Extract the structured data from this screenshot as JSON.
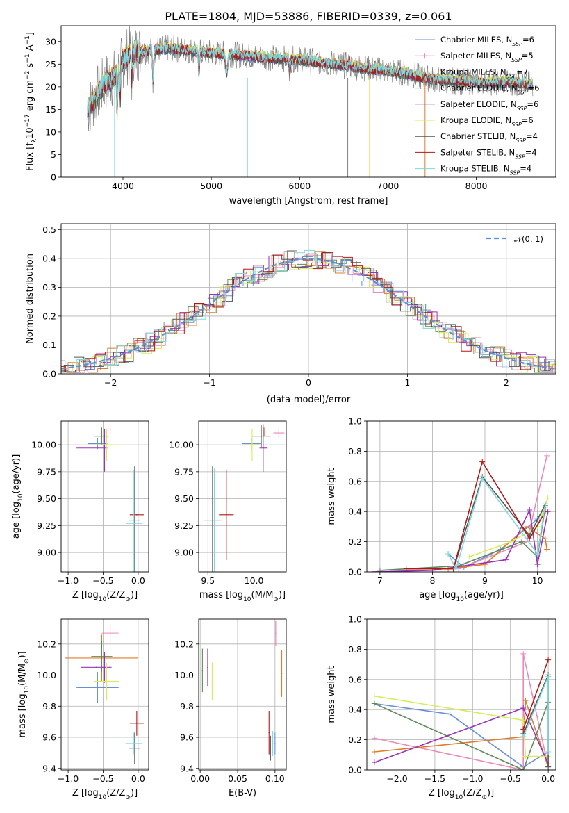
{
  "title": "PLATE=1804, MJD=53886, FIBERID=0339, z=0.061",
  "colors": {
    "chabrier_miles": "#6a8fd8",
    "salpeter_miles": "#e98ab8",
    "kroupa_miles": "#e07b2a",
    "chabrier_elodie": "#5f8a5a",
    "salpeter_elodie": "#9b33b8",
    "kroupa_elodie": "#d6ec5c",
    "chabrier_stelib": "#555555",
    "salpeter_stelib": "#b01818",
    "kroupa_stelib": "#7fd8dc",
    "data": "#808080",
    "normal": "#5b8ed8"
  },
  "chart_data": [
    {
      "id": "spectrum",
      "type": "line",
      "xlabel": "wavelength [Angstrom, rest frame]",
      "ylabel": "Flux [f",
      "ylabel_parts": {
        "a": "Flux [f",
        "b": "λ",
        "c": "10",
        "d": "−17",
        "e": " erg cm",
        "f": "−2",
        "g": " s",
        "h": "−1",
        "i": " A",
        "j": "−1",
        "k": "]"
      },
      "xlim": [
        3300,
        8900
      ],
      "ylim": [
        0,
        33.5
      ],
      "xticks": [
        4000,
        5000,
        6000,
        7000,
        8000
      ],
      "yticks": [
        0,
        5,
        10,
        15,
        20,
        25,
        30
      ],
      "series_continuum": [
        [
          3600,
          15
        ],
        [
          3700,
          18
        ],
        [
          3800,
          21
        ],
        [
          3900,
          22
        ],
        [
          4000,
          26
        ],
        [
          4100,
          27.5
        ],
        [
          4300,
          28
        ],
        [
          4500,
          28.5
        ],
        [
          4800,
          28
        ],
        [
          5000,
          27.5
        ],
        [
          5300,
          27
        ],
        [
          5600,
          26.5
        ],
        [
          6000,
          26
        ],
        [
          6400,
          25
        ],
        [
          6800,
          24
        ],
        [
          7200,
          23
        ],
        [
          7400,
          22
        ],
        [
          7600,
          21.5
        ],
        [
          8000,
          21
        ],
        [
          8400,
          21
        ],
        [
          8600,
          20.5
        ]
      ],
      "legend": [
        {
          "name": "Chabrier MILES",
          "n": "6"
        },
        {
          "name": "Salpeter MILES",
          "n": "5"
        },
        {
          "name": "Kroupa MILES",
          "n": "7"
        },
        {
          "name": "Chabrier ELODIE",
          "n": "6"
        },
        {
          "name": "Salpeter ELODIE",
          "n": "6"
        },
        {
          "name": "Kroupa ELODIE",
          "n": "6"
        },
        {
          "name": "Chabrier STELIB",
          "n": "4"
        },
        {
          "name": "Salpeter STELIB",
          "n": "4"
        },
        {
          "name": "Kroupa STELIB",
          "n": "4"
        }
      ],
      "legend_sub": "SSP",
      "legend_prefix": "N",
      "legend_loc": "upper right"
    },
    {
      "id": "residuals",
      "type": "line",
      "xlabel": "(data-model)/error",
      "ylabel": "Normed distribution",
      "xlim": [
        -2.5,
        2.5
      ],
      "ylim": [
        0,
        0.52
      ],
      "xticks": [
        -2,
        -1,
        0,
        1,
        2
      ],
      "xtick_labels": [
        "−2",
        "−1",
        "0",
        "1",
        "2"
      ],
      "yticks": [
        0.0,
        0.1,
        0.2,
        0.3,
        0.4,
        0.5
      ],
      "ytick_labels": [
        "0.0",
        "0.1",
        "0.2",
        "0.3",
        "0.4",
        "0.5"
      ],
      "legend": "𝒩(0, 1)",
      "legend_loc": "upper right",
      "grid": true
    },
    {
      "id": "age_vs_Z",
      "type": "scatter",
      "xlabel": "Z [log",
      "xlabel_parts": {
        "a": "Z [log",
        "b": "10",
        "c": "(Z/Z",
        "d": "⊙",
        "e": ")]"
      },
      "ylabel_parts": {
        "a": "age  [log",
        "b": "10",
        "c": "(age/yr)]"
      },
      "xlim": [
        -1.1,
        0.15
      ],
      "ylim": [
        8.82,
        10.22
      ],
      "xticks": [
        -1.0,
        -0.5,
        0.0
      ],
      "xtick_labels": [
        "−1.0",
        "−0.5",
        "0.0"
      ],
      "yticks": [
        9.0,
        9.25,
        9.5,
        9.75,
        10.0
      ],
      "ytick_labels": [
        "9.00",
        "9.25",
        "9.50",
        "9.75",
        "10.00"
      ],
      "points": [
        {
          "c": "chabrier_miles",
          "x": -0.58,
          "y": 10.01,
          "xerr": 0.14,
          "yerr": 0.05
        },
        {
          "c": "salpeter_miles",
          "x": -0.4,
          "y": 10.12,
          "xerr": 0.12,
          "yerr": 0.03
        },
        {
          "c": "kroupa_miles",
          "x": -0.52,
          "y": 10.12,
          "xerr": 0.52,
          "yerr": 0.04
        },
        {
          "c": "chabrier_elodie",
          "x": -0.52,
          "y": 10.08,
          "xerr": 0.1,
          "yerr": 0.08
        },
        {
          "c": "salpeter_elodie",
          "x": -0.66,
          "y": 9.97,
          "xerr": 0.22,
          "yerr": 0.0
        },
        {
          "c": "salpeter_elodie",
          "x": -0.48,
          "y": 9.95,
          "xerr": 0.0,
          "yerr": 0.2
        },
        {
          "c": "kroupa_elodie",
          "x": -0.45,
          "y": 10.0,
          "xerr": 0.18,
          "yerr": 0.15
        },
        {
          "c": "chabrier_stelib",
          "x": -0.05,
          "y": 9.3,
          "xerr": 0.08,
          "yerr": 0.5
        },
        {
          "c": "salpeter_stelib",
          "x": -0.02,
          "y": 9.35,
          "xerr": 0.1,
          "yerr": 0.0
        },
        {
          "c": "kroupa_stelib",
          "x": -0.06,
          "y": 9.27,
          "xerr": 0.12,
          "yerr": 0.5
        }
      ]
    },
    {
      "id": "age_vs_mass",
      "type": "scatter",
      "xlabel_parts": {
        "a": "mass [log",
        "b": "10",
        "c": "(M/M",
        "d": "⊙",
        "e": ")]"
      },
      "xlim": [
        9.4,
        10.35
      ],
      "ylim": [
        8.82,
        10.22
      ],
      "xticks": [
        9.5,
        10.0
      ],
      "xtick_labels": [
        "9.5",
        "10.0"
      ],
      "yticks": [
        9.0,
        9.25,
        9.5,
        9.75,
        10.0
      ],
      "ytick_labels": [
        "9.00",
        "9.25",
        "9.50",
        "9.75",
        "10.00"
      ],
      "points": [
        {
          "c": "chabrier_miles",
          "x": 9.97,
          "y": 10.01,
          "xerr": 0.1,
          "yerr": 0.05
        },
        {
          "c": "salpeter_miles",
          "x": 10.27,
          "y": 10.11,
          "xerr": 0.06,
          "yerr": 0.05
        },
        {
          "c": "kroupa_miles",
          "x": 10.11,
          "y": 10.12,
          "xerr": 0.15,
          "yerr": 0.04
        },
        {
          "c": "chabrier_elodie",
          "x": 10.08,
          "y": 10.08,
          "xerr": 0.1,
          "yerr": 0.1
        },
        {
          "c": "salpeter_elodie",
          "x": 10.1,
          "y": 9.97,
          "xerr": 0.04,
          "yerr": 0.22
        },
        {
          "c": "kroupa_elodie",
          "x": 9.98,
          "y": 10.0,
          "xerr": 0.08,
          "yerr": 0.15
        },
        {
          "c": "chabrier_stelib",
          "x": 9.55,
          "y": 9.3,
          "xerr": 0.1,
          "yerr": 0.5
        },
        {
          "c": "salpeter_stelib",
          "x": 9.7,
          "y": 9.35,
          "xerr": 0.08,
          "yerr": 0.42
        },
        {
          "c": "kroupa_stelib",
          "x": 9.57,
          "y": 9.3,
          "xerr": 0.06,
          "yerr": 0.48
        }
      ]
    },
    {
      "id": "weight_vs_age",
      "type": "line",
      "xlabel_parts": {
        "a": "age  [log",
        "b": "10",
        "c": "(age/yr)]"
      },
      "ylabel": "mass weight",
      "xlim": [
        6.75,
        10.35
      ],
      "ylim": [
        0,
        1.0
      ],
      "xticks": [
        7,
        8,
        9,
        10
      ],
      "xtick_labels": [
        "7",
        "8",
        "9",
        "10"
      ],
      "yticks": [
        0.0,
        0.2,
        0.4,
        0.6,
        0.8,
        1.0
      ],
      "ytick_labels": [
        "0.0",
        "0.2",
        "0.4",
        "0.6",
        "0.8",
        "1.0"
      ],
      "series": [
        {
          "c": "chabrier_miles",
          "x": [
            8.3,
            8.6,
            9.3,
            10.0,
            10.15
          ],
          "y": [
            0.12,
            0.03,
            0.15,
            0.35,
            0.44
          ]
        },
        {
          "c": "salpeter_miles",
          "x": [
            8.5,
            9.8,
            10.18
          ],
          "y": [
            0.02,
            0.2,
            0.77
          ]
        },
        {
          "c": "kroupa_miles",
          "x": [
            7.5,
            8.3,
            9.0,
            9.8,
            10.15,
            10.18
          ],
          "y": [
            0.02,
            0.02,
            0.05,
            0.3,
            0.22,
            0.15
          ]
        },
        {
          "c": "chabrier_elodie",
          "x": [
            7.0,
            8.5,
            9.7,
            10.0,
            10.15
          ],
          "y": [
            0.01,
            0.04,
            0.2,
            0.1,
            0.43
          ]
        },
        {
          "c": "salpeter_elodie",
          "x": [
            6.85,
            8.0,
            9.4,
            9.85,
            10.0,
            10.2
          ],
          "y": [
            0.0,
            0.01,
            0.08,
            0.41,
            0.05,
            0.4
          ]
        },
        {
          "c": "kroupa_elodie",
          "x": [
            8.7,
            9.5,
            10.0,
            10.2
          ],
          "y": [
            0.1,
            0.2,
            0.3,
            0.49
          ]
        },
        {
          "c": "chabrier_stelib",
          "x": [
            8.4,
            8.95,
            9.85,
            10.15
          ],
          "y": [
            0.02,
            0.63,
            0.24,
            0.45
          ]
        },
        {
          "c": "salpeter_stelib",
          "x": [
            7.5,
            8.4,
            8.95,
            9.85,
            10.15
          ],
          "y": [
            0.02,
            0.02,
            0.73,
            0.22,
            0.4
          ]
        },
        {
          "c": "kroupa_stelib",
          "x": [
            8.3,
            8.45,
            8.95,
            10.0,
            10.15
          ],
          "y": [
            0.12,
            0.02,
            0.62,
            0.12,
            0.45
          ]
        }
      ]
    },
    {
      "id": "mass_vs_Z",
      "type": "scatter",
      "xlabel_parts": {
        "a": "Z [log",
        "b": "10",
        "c": "(Z/Z",
        "d": "⊙",
        "e": ")]"
      },
      "ylabel_parts": {
        "a": "mass [log",
        "b": "10",
        "c": "(M/M",
        "d": "⊙",
        "e": ")]"
      },
      "xlim": [
        -1.1,
        0.15
      ],
      "ylim": [
        9.39,
        10.36
      ],
      "xticks": [
        -1.0,
        -0.5,
        0.0
      ],
      "xtick_labels": [
        "−1.0",
        "−0.5",
        "0.0"
      ],
      "yticks": [
        9.4,
        9.6,
        9.8,
        10.0,
        10.2
      ],
      "ytick_labels": [
        "9.4",
        "9.6",
        "9.8",
        "10.0",
        "10.2"
      ],
      "points": [
        {
          "c": "chabrier_miles",
          "x": -0.58,
          "y": 9.92,
          "xerr": 0.3,
          "yerr": 0.1
        },
        {
          "c": "salpeter_miles",
          "x": -0.4,
          "y": 10.27,
          "xerr": 0.12,
          "yerr": 0.06
        },
        {
          "c": "kroupa_miles",
          "x": -0.52,
          "y": 10.11,
          "xerr": 0.52,
          "yerr": 0.15
        },
        {
          "c": "chabrier_elodie",
          "x": -0.52,
          "y": 10.12,
          "xerr": 0.15,
          "yerr": 0.1
        },
        {
          "c": "salpeter_elodie",
          "x": -0.6,
          "y": 10.05,
          "xerr": 0.22,
          "yerr": 0.0
        },
        {
          "c": "salpeter_elodie",
          "x": -0.48,
          "y": 10.05,
          "xerr": 0.0,
          "yerr": 0.1
        },
        {
          "c": "kroupa_elodie",
          "x": -0.45,
          "y": 9.96,
          "xerr": 0.18,
          "yerr": 0.12
        },
        {
          "c": "chabrier_stelib",
          "x": -0.05,
          "y": 9.53,
          "xerr": 0.08,
          "yerr": 0.1
        },
        {
          "c": "salpeter_stelib",
          "x": -0.02,
          "y": 9.69,
          "xerr": 0.1,
          "yerr": 0.08
        },
        {
          "c": "kroupa_stelib",
          "x": -0.06,
          "y": 9.56,
          "xerr": 0.12,
          "yerr": 0.07
        }
      ]
    },
    {
      "id": "mass_vs_ebv",
      "type": "scatter",
      "xlabel": "E(B-V)",
      "xlim": [
        -0.002,
        0.115
      ],
      "ylim": [
        9.39,
        10.36
      ],
      "xticks": [
        0.0,
        0.05,
        0.1
      ],
      "xtick_labels": [
        "0.00",
        "0.05",
        "0.10"
      ],
      "yticks": [
        9.4,
        9.6,
        9.8,
        10.0,
        10.2
      ],
      "ytick_labels": [
        "9.4",
        "9.6",
        "9.8",
        "10.0",
        "10.2"
      ],
      "points": [
        {
          "c": "chabrier_miles",
          "x": 0.1,
          "y": 9.56,
          "xerr": 0.0,
          "yerr": 0.07
        },
        {
          "c": "salpeter_miles",
          "x": 0.101,
          "y": 10.27,
          "xerr": 0.0,
          "yerr": 0.08
        },
        {
          "c": "kroupa_miles",
          "x": 0.109,
          "y": 10.01,
          "xerr": 0.0,
          "yerr": 0.15
        },
        {
          "c": "chabrier_elodie",
          "x": 0.003,
          "y": 10.03,
          "xerr": 0.0,
          "yerr": 0.14
        },
        {
          "c": "salpeter_elodie",
          "x": 0.01,
          "y": 10.05,
          "xerr": 0.0,
          "yerr": 0.12
        },
        {
          "c": "kroupa_elodie",
          "x": 0.016,
          "y": 9.96,
          "xerr": 0.0,
          "yerr": 0.12
        },
        {
          "c": "chabrier_stelib",
          "x": 0.094,
          "y": 9.53,
          "xerr": 0.0,
          "yerr": 0.08
        },
        {
          "c": "salpeter_stelib",
          "x": 0.092,
          "y": 9.63,
          "xerr": 0.0,
          "yerr": 0.14
        },
        {
          "c": "kroupa_stelib",
          "x": 0.097,
          "y": 9.56,
          "xerr": 0.0,
          "yerr": 0.08
        }
      ]
    },
    {
      "id": "weight_vs_Z",
      "type": "line",
      "xlabel_parts": {
        "a": "Z [log",
        "b": "10",
        "c": "(Z/Z",
        "d": "⊙",
        "e": ")]"
      },
      "ylabel": "mass weight",
      "xlim": [
        -2.4,
        0.1
      ],
      "ylim": [
        0,
        1.0
      ],
      "xticks": [
        -2.0,
        -1.5,
        -1.0,
        -0.5,
        0.0
      ],
      "xtick_labels": [
        "−2.0",
        "−1.5",
        "−1.0",
        "−0.5",
        "0.0"
      ],
      "yticks": [
        0.0,
        0.2,
        0.4,
        0.6,
        0.8,
        1.0
      ],
      "ytick_labels": [
        "0.0",
        "0.2",
        "0.4",
        "0.6",
        "0.8",
        "1.0"
      ],
      "series": [
        {
          "c": "chabrier_miles",
          "x": [
            -2.3,
            -1.3,
            -0.33,
            0.0
          ],
          "y": [
            0.44,
            0.37,
            0.02,
            0.12
          ]
        },
        {
          "c": "salpeter_miles",
          "x": [
            -2.3,
            -0.33,
            -0.33,
            0.0
          ],
          "y": [
            0.21,
            0.0,
            0.77,
            0.02
          ]
        },
        {
          "c": "kroupa_miles",
          "x": [
            -2.3,
            -0.33,
            -0.3,
            0.0
          ],
          "y": [
            0.12,
            0.22,
            0.46,
            0.02
          ]
        },
        {
          "c": "chabrier_elodie",
          "x": [
            -2.3,
            -0.33,
            0.0
          ],
          "y": [
            0.44,
            0.0,
            0.45
          ]
        },
        {
          "c": "salpeter_elodie",
          "x": [
            -2.3,
            -0.33,
            0.0
          ],
          "y": [
            0.05,
            0.41,
            0.04
          ]
        },
        {
          "c": "kroupa_elodie",
          "x": [
            -2.3,
            -0.33,
            -0.3,
            0.0
          ],
          "y": [
            0.49,
            0.33,
            0.09,
            0.09
          ]
        },
        {
          "c": "chabrier_stelib",
          "x": [
            -0.33,
            0.0,
            0.0
          ],
          "y": [
            0.24,
            0.63,
            0.02
          ]
        },
        {
          "c": "salpeter_stelib",
          "x": [
            -0.33,
            0.0
          ],
          "y": [
            0.27,
            0.73
          ]
        },
        {
          "c": "kroupa_stelib",
          "x": [
            -0.33,
            0.0,
            0.0
          ],
          "y": [
            0.22,
            0.62,
            0.12
          ]
        }
      ]
    }
  ]
}
